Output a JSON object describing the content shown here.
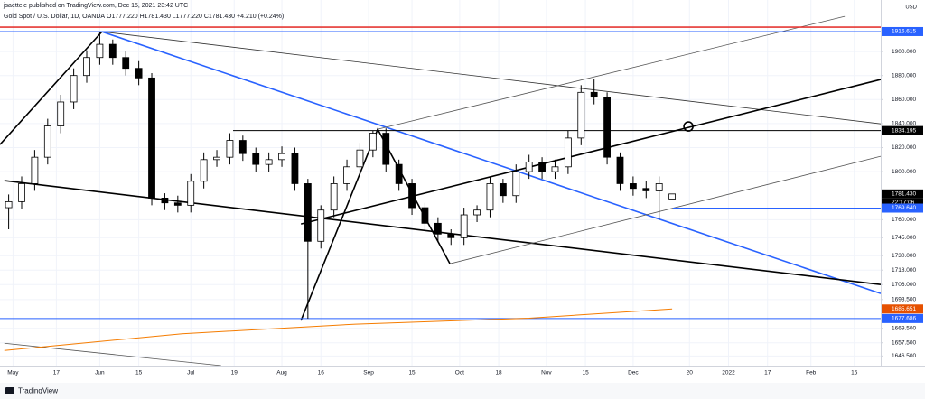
{
  "chart_data": {
    "type": "candlestick",
    "published": "jsaettele published on TradingView.com, Dec 15, 2021 23:42 UTC",
    "symbol": "Gold Spot / U.S. Dollar, 1D, OANDA",
    "ohlc_text": "O1777.220 H1781.430 L1777.220 C1781.430 +4.210 (+0.24%)",
    "currency": "USD",
    "countdown": "22:17:06",
    "brand": "TradingView",
    "xlim": [
      -2,
      201.1
    ],
    "ylim": [
      1638.5,
      1942.9
    ],
    "grid": true,
    "xticks": [
      {
        "value": 1,
        "label": "May"
      },
      {
        "value": 11,
        "label": "17"
      },
      {
        "value": 21,
        "label": "Jun"
      },
      {
        "value": 30,
        "label": "15"
      },
      {
        "value": 42,
        "label": "Jul"
      },
      {
        "value": 52,
        "label": "19"
      },
      {
        "value": 63,
        "label": "Aug"
      },
      {
        "value": 72,
        "label": "16"
      },
      {
        "value": 83,
        "label": "Sep"
      },
      {
        "value": 93,
        "label": "15"
      },
      {
        "value": 104,
        "label": "Oct"
      },
      {
        "value": 113,
        "label": "18"
      },
      {
        "value": 124,
        "label": "Nov"
      },
      {
        "value": 133,
        "label": "15"
      },
      {
        "value": 144,
        "label": "Dec"
      },
      {
        "value": 157,
        "label": "20"
      },
      {
        "value": 166,
        "label": "2022"
      },
      {
        "value": 175,
        "label": "17"
      },
      {
        "value": 185,
        "label": "Feb"
      },
      {
        "value": 195,
        "label": "15"
      }
    ],
    "yticks": [
      {
        "value": 1900,
        "label": "1900.000"
      },
      {
        "value": 1880,
        "label": "1880.000"
      },
      {
        "value": 1860,
        "label": "1860.000"
      },
      {
        "value": 1840,
        "label": "1840.000"
      },
      {
        "value": 1820,
        "label": "1820.000"
      },
      {
        "value": 1800,
        "label": "1800.000"
      },
      {
        "value": 1760,
        "label": "1760.000"
      },
      {
        "value": 1745,
        "label": "1745.000"
      },
      {
        "value": 1730,
        "label": "1730.000"
      },
      {
        "value": 1718,
        "label": "1718.000"
      },
      {
        "value": 1706,
        "label": "1706.000"
      },
      {
        "value": 1693.5,
        "label": "1693.500"
      },
      {
        "value": 1669.5,
        "label": "1669.500"
      },
      {
        "value": 1657.5,
        "label": "1657.500"
      },
      {
        "value": 1646.5,
        "label": "1646.500"
      }
    ],
    "x": [
      0,
      3,
      6,
      9,
      12,
      15,
      18,
      21,
      24,
      27,
      30,
      33,
      36,
      39,
      42,
      45,
      48,
      51,
      54,
      57,
      60,
      63,
      66,
      69,
      72,
      75,
      78,
      81,
      84,
      87,
      90,
      93,
      96,
      99,
      102,
      105,
      108,
      111,
      114,
      117,
      120,
      123,
      126,
      129,
      132,
      135,
      138,
      141,
      144,
      147,
      150,
      153
    ],
    "open": [
      1770,
      1775,
      1790,
      1812,
      1838,
      1858,
      1880,
      1895,
      1906,
      1895,
      1886,
      1878,
      1778,
      1774,
      1772,
      1792,
      1810,
      1812,
      1826,
      1815,
      1806,
      1810,
      1815,
      1790,
      1742,
      1768,
      1790,
      1804,
      1818,
      1832,
      1806,
      1790,
      1770,
      1757,
      1748,
      1745,
      1764,
      1768,
      1790,
      1780,
      1800,
      1808,
      1800,
      1804,
      1828,
      1866,
      1862,
      1812,
      1790,
      1786,
      1784,
      1777.22
    ],
    "high": [
      1781,
      1796,
      1818,
      1844,
      1864,
      1886,
      1901,
      1916.6,
      1910,
      1900,
      1892,
      1882,
      1782,
      1780,
      1798,
      1816,
      1818,
      1832,
      1830,
      1820,
      1816,
      1821,
      1820,
      1794,
      1772,
      1796,
      1810,
      1824,
      1834,
      1836,
      1810,
      1794,
      1774,
      1762,
      1752,
      1770,
      1772,
      1796,
      1794,
      1806,
      1814,
      1812,
      1810,
      1834,
      1872,
      1877,
      1866,
      1816,
      1796,
      1792,
      1796,
      1781.43
    ],
    "low": [
      1752,
      1769,
      1784,
      1806,
      1832,
      1852,
      1874,
      1889,
      1889,
      1880,
      1872,
      1772,
      1768,
      1766,
      1766,
      1786,
      1804,
      1806,
      1809,
      1800,
      1800,
      1804,
      1784,
      1677.686,
      1736,
      1762,
      1784,
      1798,
      1812,
      1800,
      1784,
      1764,
      1751,
      1742,
      1739,
      1739,
      1758,
      1762,
      1774,
      1774,
      1794,
      1794,
      1794,
      1798,
      1822,
      1856,
      1806,
      1784,
      1780,
      1778,
      1760,
      1777.22
    ],
    "close": [
      1775,
      1790,
      1812,
      1838,
      1858,
      1880,
      1895,
      1906,
      1895,
      1886,
      1878,
      1778,
      1774,
      1772,
      1792,
      1810,
      1812,
      1826,
      1815,
      1806,
      1810,
      1815,
      1790,
      1742,
      1768,
      1790,
      1804,
      1818,
      1832,
      1806,
      1790,
      1770,
      1757,
      1748,
      1745,
      1764,
      1768,
      1790,
      1780,
      1800,
      1808,
      1800,
      1804,
      1828,
      1866,
      1862,
      1812,
      1790,
      1786,
      1784,
      1790,
      1781.43
    ],
    "drawings": [
      {
        "color": "#000000",
        "width": 1.6,
        "points": [
          [
            -2,
            1822.6
          ],
          [
            21.5,
            1916.5
          ]
        ]
      },
      {
        "color": "#2962ff",
        "width": 1.6,
        "points": [
          [
            21.5,
            1916.5
          ],
          [
            201.1,
            1698.5
          ]
        ]
      },
      {
        "color": "#333333",
        "width": 0.8,
        "points": [
          [
            21.5,
            1916.5
          ],
          [
            201.1,
            1839.8
          ]
        ]
      },
      {
        "color": "#000000",
        "width": 1.6,
        "points": [
          [
            -1,
            1792.5
          ],
          [
            201.1,
            1706
          ]
        ]
      },
      {
        "color": "#000000",
        "width": 1.6,
        "points": [
          [
            67.4,
            1756.4
          ],
          [
            201.1,
            1876.7
          ]
        ]
      },
      {
        "color": "#555555",
        "width": 0.8,
        "points": [
          [
            85.1,
            1835.3
          ],
          [
            192.8,
            1929.3
          ]
        ]
      },
      {
        "color": "#000000",
        "width": 1.6,
        "points": [
          [
            67.4,
            1676
          ],
          [
            85.1,
            1835.3
          ],
          [
            101.75,
            1723.3
          ]
        ]
      },
      {
        "color": "#000000",
        "width": 1,
        "points": [
          [
            51.75,
            1834.195
          ],
          [
            201.1,
            1834.195
          ]
        ]
      },
      {
        "color": "#555555",
        "width": 0.8,
        "points": [
          [
            101.75,
            1723.3
          ],
          [
            201.1,
            1812.8
          ]
        ]
      },
      {
        "color": "#555555",
        "width": 0.8,
        "points": [
          [
            -1,
            1657.1
          ],
          [
            49,
            1638.5
          ]
        ]
      },
      {
        "color": "#e53935",
        "width": 1.6,
        "points": [
          [
            -2,
            1920.3
          ],
          [
            201.1,
            1920.3
          ]
        ]
      },
      {
        "color": "#2962ff",
        "width": 1,
        "points": [
          [
            -2,
            1916.615
          ],
          [
            201.1,
            1916.615
          ]
        ]
      },
      {
        "color": "#2962ff",
        "width": 1,
        "points": [
          [
            153.2,
            1769.64
          ],
          [
            201.1,
            1769.64
          ]
        ]
      },
      {
        "color": "#2962ff",
        "width": 1,
        "points": [
          [
            -2,
            1677.686
          ],
          [
            201.1,
            1677.686
          ]
        ]
      },
      {
        "color": "#f57c00",
        "width": 1,
        "points": [
          [
            -1,
            1651.1
          ],
          [
            40,
            1665
          ],
          [
            80,
            1673
          ],
          [
            120,
            1678
          ],
          [
            153,
            1685.651
          ]
        ]
      }
    ],
    "circle": [
      156.75,
      1837.6
    ],
    "price_labels": [
      {
        "value": 1916.615,
        "label": "1916.615",
        "color": "#2962ff"
      },
      {
        "value": 1834.195,
        "label": "1834.195",
        "color": "#000000"
      },
      {
        "value": 1781.43,
        "label": "1781.430",
        "color": "#000000"
      },
      {
        "value": 1769.64,
        "label": "1769.640",
        "color": "#2962ff"
      },
      {
        "value": 1685.651,
        "label": "1685.651",
        "color": "#e65100"
      },
      {
        "value": 1677.686,
        "label": "1677.686",
        "color": "#2962ff"
      }
    ]
  }
}
